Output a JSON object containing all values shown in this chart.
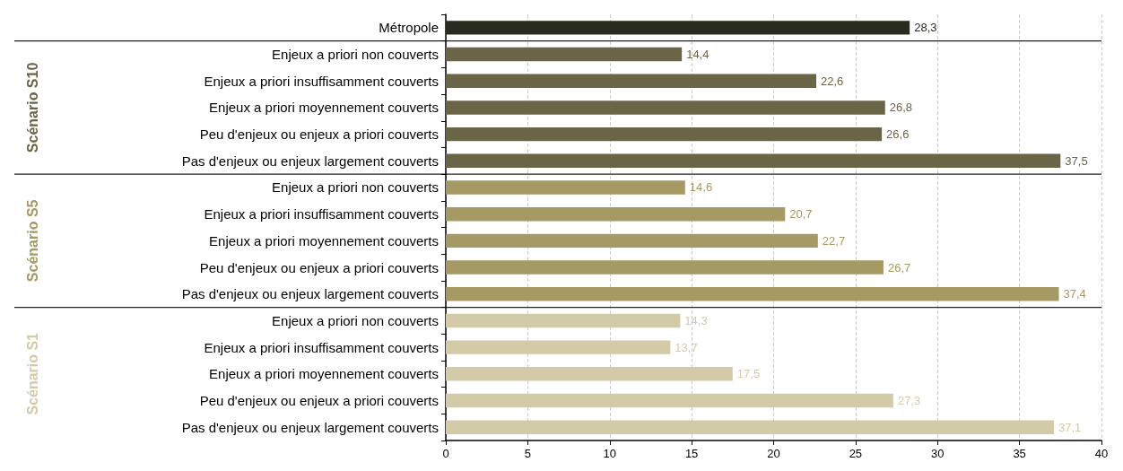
{
  "chart_data": {
    "type": "bar",
    "orientation": "horizontal",
    "categories": [
      "Métropole",
      "Enjeux a priori non couverts",
      "Enjeux a priori insuffisamment couverts",
      "Enjeux a priori moyennement couverts",
      "Peu d'enjeux ou enjeux a priori couverts",
      "Pas d'enjeux ou enjeux largement couverts",
      "Enjeux a priori non couverts",
      "Enjeux a priori insuffisamment couverts",
      "Enjeux a priori moyennement couverts",
      "Peu d'enjeux ou enjeux a priori couverts",
      "Pas d'enjeux ou enjeux largement couverts",
      "Enjeux a priori non couverts",
      "Enjeux a priori insuffisamment couverts",
      "Enjeux a priori moyennement couverts",
      "Peu d'enjeux ou enjeux a priori couverts",
      "Pas d'enjeux ou enjeux largement couverts"
    ],
    "series": [
      {
        "color": "#2b2a1e",
        "values": [
          28.3,
          null,
          null,
          null,
          null,
          null,
          null,
          null,
          null,
          null,
          null,
          null,
          null,
          null,
          null,
          null
        ],
        "value_labels": [
          "28,3",
          null,
          null,
          null,
          null,
          null,
          null,
          null,
          null,
          null,
          null,
          null,
          null,
          null,
          null,
          null
        ]
      },
      {
        "name": "Scénario S10",
        "color": "#6b6548",
        "values": [
          null,
          14.4,
          22.6,
          26.8,
          26.6,
          37.5,
          null,
          null,
          null,
          null,
          null,
          null,
          null,
          null,
          null,
          null
        ],
        "value_labels": [
          null,
          "14,4",
          "22,6",
          "26,8",
          "26,6",
          "37,5",
          null,
          null,
          null,
          null,
          null,
          null,
          null,
          null,
          null,
          null
        ]
      },
      {
        "name": "Scénario S5",
        "color": "#a59a63",
        "values": [
          null,
          null,
          null,
          null,
          null,
          null,
          14.6,
          20.7,
          22.7,
          26.7,
          37.4,
          null,
          null,
          null,
          null,
          null
        ],
        "value_labels": [
          null,
          null,
          null,
          null,
          null,
          null,
          "14,6",
          "20,7",
          "22,7",
          "26,7",
          "37,4",
          null,
          null,
          null,
          null,
          null
        ]
      },
      {
        "name": "Scénario S1",
        "color": "#d3caa8",
        "values": [
          null,
          null,
          null,
          null,
          null,
          null,
          null,
          null,
          null,
          null,
          null,
          14.3,
          13.7,
          17.5,
          27.3,
          37.1
        ],
        "value_labels": [
          null,
          null,
          null,
          null,
          null,
          null,
          null,
          null,
          null,
          null,
          null,
          "14,3",
          "13,7",
          "17,5",
          "27,3",
          "37,1"
        ]
      }
    ],
    "xlim": [
      0,
      40
    ],
    "xticks": [
      0,
      5,
      10,
      15,
      20,
      25,
      30,
      35,
      40
    ],
    "grid": "x",
    "legend": false
  }
}
